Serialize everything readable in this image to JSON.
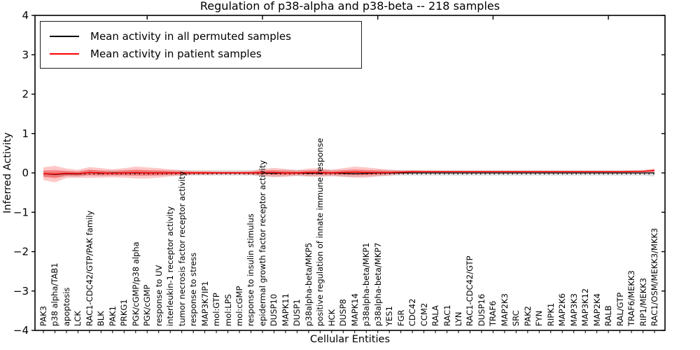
{
  "chart_data": {
    "type": "line",
    "title": "Regulation of p38-alpha and p38-beta -- 218 samples",
    "xlabel": "Cellular Entities",
    "ylabel": "Inferred Activity",
    "ylim": [
      -4,
      4
    ],
    "yticks": [
      -4,
      -3,
      -2,
      -1,
      0,
      1,
      2,
      3,
      4
    ],
    "x_major_ticks_every": 10,
    "grid": false,
    "legend_position": "upper left",
    "legend_entries": [
      {
        "label": "Mean activity in all permuted samples",
        "color": "#000000"
      },
      {
        "label": "Mean activity in patient samples",
        "color": "#ff0000"
      }
    ],
    "zero_line": {
      "style": "dotted",
      "color": "#000000",
      "value": 0
    },
    "categories": [
      "PAK3",
      "p38 alpha/TAB1",
      "apoptosis",
      "LCK",
      "RAC1-CDC42/GTP/PAK family",
      "BLK",
      "PAK1",
      "PRKG1",
      "PGK/cGMP/p38 alpha",
      "PGK/cGMP",
      "response to UV",
      "interleukin-1 receptor activity",
      "tumor necrosis factor receptor activity",
      "response to stress",
      "MAP3K7IP1",
      "mol:GTP",
      "mol:LPS",
      "mol:cGMP",
      "response to insulin stimulus",
      "epidermal growth factor receptor activity",
      "DUSP10",
      "MAPK11",
      "DUSP1",
      "p38alpha-beta/MKP5",
      "positive regulation of innate immune response",
      "HCK",
      "DUSP8",
      "MAPK14",
      "p38alpha-beta/MKP1",
      "p38alpha-beta/MKP7",
      "YES1",
      "FGR",
      "CDC42",
      "CCM2",
      "RALA",
      "RAC1",
      "LYN",
      "RAC1-CDC42/GTP",
      "DUSP16",
      "TRAF6",
      "MAP2K3",
      "SRC",
      "PAK2",
      "FYN",
      "RIPK1",
      "MAP2K6",
      "MAP3K3",
      "MAP3K12",
      "MAP2K4",
      "RALB",
      "RAL/GTP",
      "TRAF6/MEKK3",
      "RIP1/MEKK3",
      "RAC1/OSM/MEKK3/MKK3"
    ],
    "series": [
      {
        "name": "Mean activity in all permuted samples",
        "color": "#000000",
        "values": [
          -0.02,
          -0.04,
          -0.02,
          -0.03,
          0.01,
          -0.01,
          0,
          0,
          0,
          0,
          0,
          0,
          0,
          0,
          0,
          0,
          0,
          0,
          0,
          0,
          -0.01,
          0,
          0,
          -0.01,
          0,
          0,
          -0.01,
          -0.02,
          -0.01,
          0,
          0,
          0,
          0,
          0,
          0,
          0,
          0,
          0,
          0,
          0,
          0,
          0,
          0,
          0,
          0,
          0,
          0,
          0,
          0,
          0,
          0,
          0,
          0,
          0
        ]
      },
      {
        "name": "Mean activity in patient samples",
        "color": "#ff0000",
        "values": [
          -0.02,
          -0.03,
          -0.01,
          -0.02,
          0.01,
          0,
          -0.01,
          0,
          0.01,
          0,
          0,
          0,
          0,
          0,
          0,
          0,
          0,
          0,
          0,
          0.01,
          0.01,
          0,
          0,
          0.01,
          0.01,
          0,
          0.01,
          0.02,
          0.01,
          0.01,
          0.01,
          0.02,
          0.03,
          0.03,
          0.03,
          0.03,
          0.03,
          0.03,
          0.03,
          0.03,
          0.03,
          0.03,
          0.03,
          0.03,
          0.03,
          0.03,
          0.03,
          0.03,
          0.03,
          0.03,
          0.03,
          0.035,
          0.04,
          0.06
        ]
      }
    ],
    "bands": [
      {
        "name": "permuted-std",
        "color": "#bfbfbf",
        "opacity": 0.5,
        "center_series": 0,
        "half_widths": [
          0.07,
          0.07,
          0.07,
          0.07,
          0.07,
          0.07,
          0.07,
          0.07,
          0.07,
          0.07,
          0.07,
          0.07,
          0.07,
          0.07,
          0.07,
          0.07,
          0.07,
          0.07,
          0.07,
          0.08,
          0.08,
          0.08,
          0.08,
          0.08,
          0.08,
          0.08,
          0.08,
          0.08,
          0.08,
          0.08,
          0.08,
          0.07,
          0.07,
          0.07,
          0.07,
          0.07,
          0.07,
          0.07,
          0.07,
          0.07,
          0.07,
          0.07,
          0.07,
          0.07,
          0.07,
          0.07,
          0.07,
          0.07,
          0.07,
          0.07,
          0.07,
          0.07,
          0.07,
          0.09
        ]
      },
      {
        "name": "patient-std-outer",
        "color": "#ff0000",
        "opacity": 0.22,
        "center_series": 1,
        "half_widths": [
          0.16,
          0.21,
          0.12,
          0.1,
          0.14,
          0.12,
          0.1,
          0.12,
          0.15,
          0.14,
          0.12,
          0.09,
          0.07,
          0.05,
          0.05,
          0.04,
          0.04,
          0.04,
          0.05,
          0.09,
          0.12,
          0.1,
          0.07,
          0.1,
          0.11,
          0.08,
          0.11,
          0.14,
          0.13,
          0.1,
          0.07,
          0.05,
          0.04,
          0.03,
          0.03,
          0.025,
          0.025,
          0.025,
          0.025,
          0.025,
          0.025,
          0.025,
          0.025,
          0.025,
          0.025,
          0.025,
          0.025,
          0.025,
          0.025,
          0.025,
          0.025,
          0.025,
          0.03,
          0.05
        ]
      },
      {
        "name": "patient-std-inner",
        "color": "#ff0000",
        "opacity": 0.3,
        "center_series": 1,
        "half_widths": [
          0.08,
          0.105,
          0.06,
          0.05,
          0.07,
          0.06,
          0.05,
          0.06,
          0.075,
          0.07,
          0.06,
          0.045,
          0.035,
          0.025,
          0.025,
          0.02,
          0.02,
          0.02,
          0.025,
          0.045,
          0.06,
          0.05,
          0.035,
          0.05,
          0.055,
          0.04,
          0.055,
          0.07,
          0.065,
          0.05,
          0.035,
          0.025,
          0.02,
          0.015,
          0.015,
          0.012,
          0.012,
          0.012,
          0.012,
          0.012,
          0.012,
          0.012,
          0.012,
          0.012,
          0.012,
          0.012,
          0.012,
          0.012,
          0.012,
          0.012,
          0.012,
          0.012,
          0.015,
          0.025
        ]
      }
    ]
  }
}
